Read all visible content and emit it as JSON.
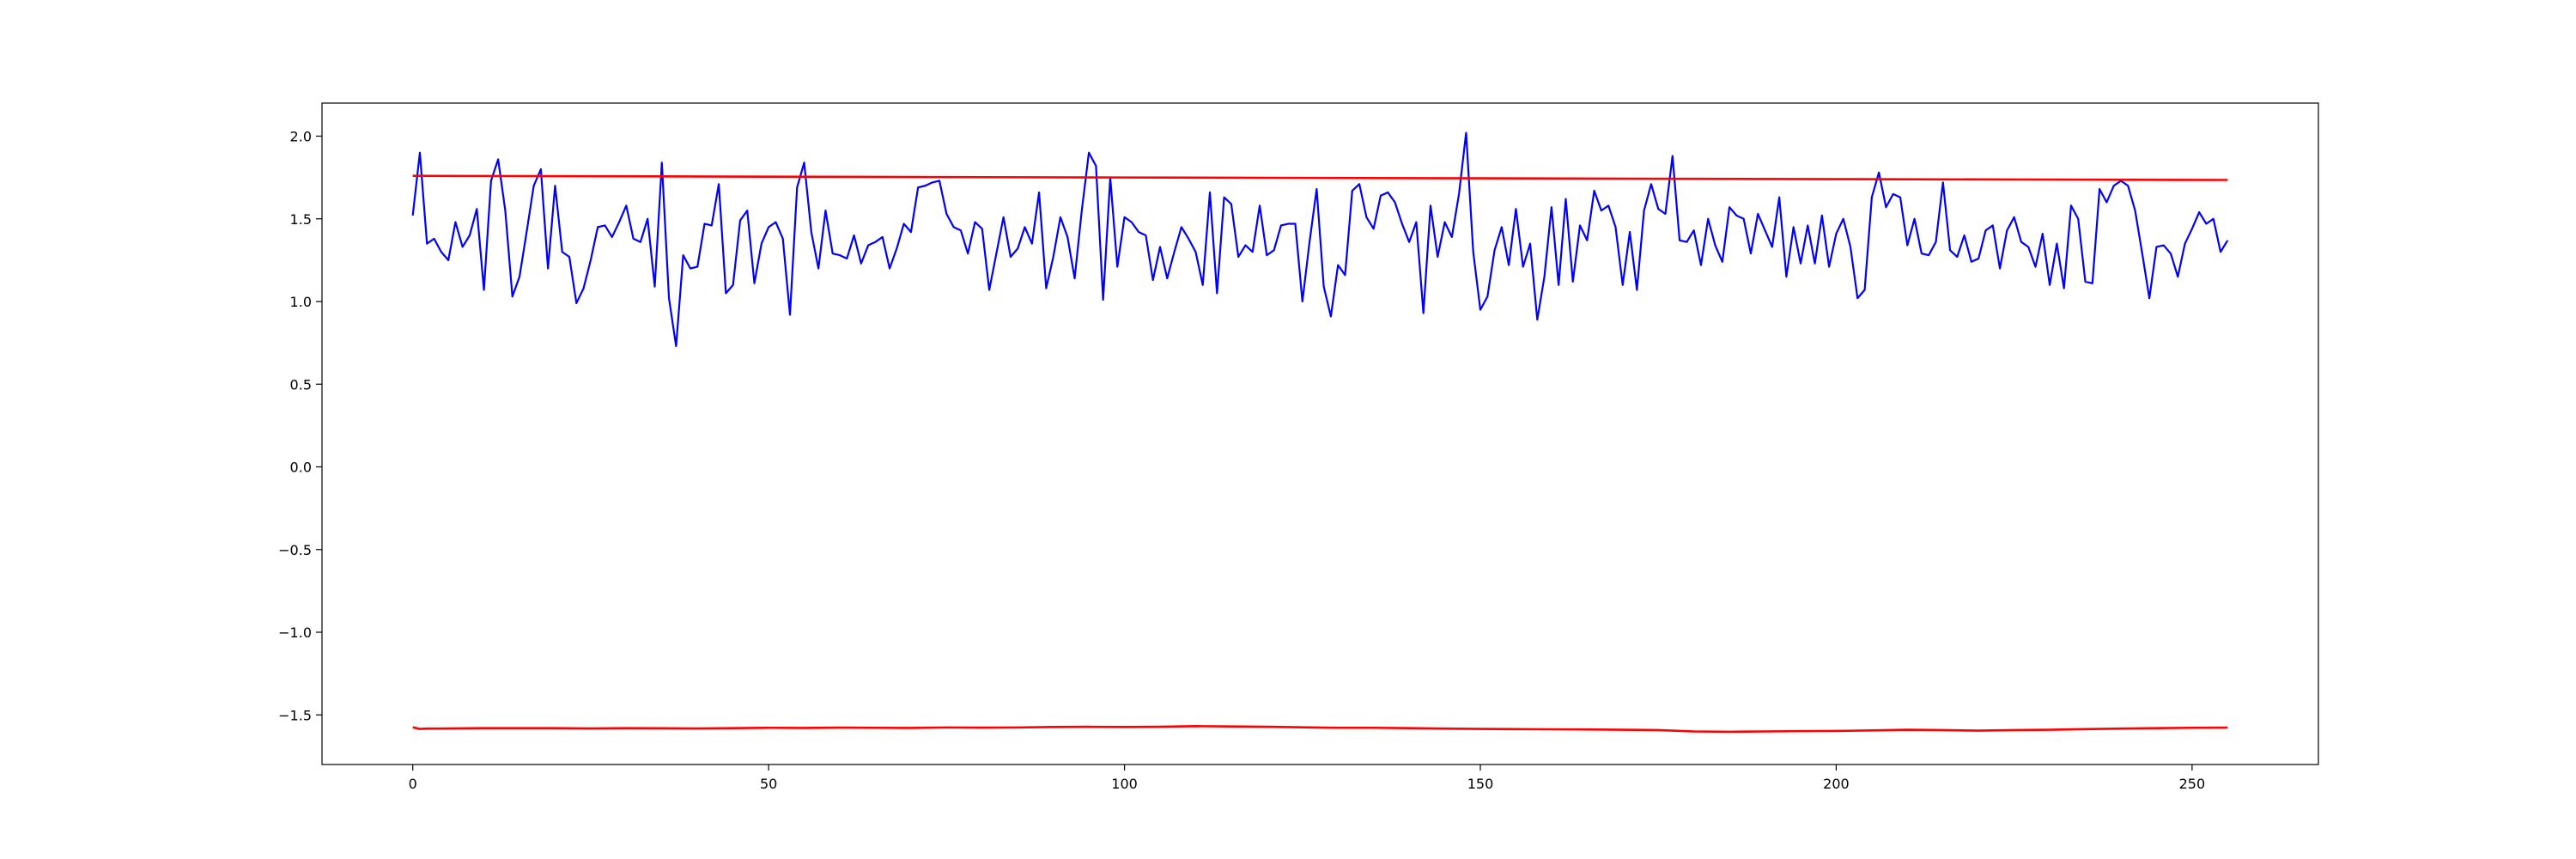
{
  "chart_data": {
    "type": "line",
    "title": "",
    "xlabel": "",
    "ylabel": "",
    "xlim": [
      -12.75,
      267.75
    ],
    "ylim": [
      -1.8,
      2.2
    ],
    "xticks": [
      0,
      50,
      100,
      150,
      200,
      250
    ],
    "xtick_labels": [
      "0",
      "50",
      "100",
      "150",
      "200",
      "250"
    ],
    "yticks": [
      -1.5,
      -1.0,
      -0.5,
      0.0,
      0.5,
      1.0,
      1.5,
      2.0
    ],
    "ytick_labels": [
      "−1.5",
      "−1.0",
      "−0.5",
      "0.0",
      "0.5",
      "1.0",
      "1.5",
      "2.0"
    ],
    "grid": false,
    "legend": "none",
    "series": [
      {
        "color": "#0000ff",
        "x_start": 0,
        "x_step": 1,
        "values": [
          1.52,
          1.9,
          1.35,
          1.38,
          1.3,
          1.25,
          1.48,
          1.33,
          1.4,
          1.56,
          1.07,
          1.73,
          1.86,
          1.55,
          1.03,
          1.15,
          1.42,
          1.7,
          1.8,
          1.2,
          1.7,
          1.3,
          1.27,
          0.99,
          1.08,
          1.25,
          1.45,
          1.46,
          1.39,
          1.48,
          1.58,
          1.38,
          1.36,
          1.5,
          1.09,
          1.84,
          1.02,
          0.73,
          1.28,
          1.2,
          1.21,
          1.47,
          1.46,
          1.71,
          1.05,
          1.1,
          1.49,
          1.55,
          1.11,
          1.35,
          1.45,
          1.48,
          1.38,
          0.92,
          1.69,
          1.84,
          1.42,
          1.2,
          1.55,
          1.29,
          1.28,
          1.26,
          1.4,
          1.23,
          1.34,
          1.36,
          1.39,
          1.2,
          1.32,
          1.47,
          1.42,
          1.69,
          1.7,
          1.72,
          1.73,
          1.53,
          1.45,
          1.43,
          1.29,
          1.48,
          1.44,
          1.07,
          1.29,
          1.51,
          1.27,
          1.32,
          1.45,
          1.35,
          1.66,
          1.08,
          1.27,
          1.51,
          1.39,
          1.14,
          1.55,
          1.9,
          1.82,
          1.01,
          1.75,
          1.21,
          1.51,
          1.48,
          1.42,
          1.4,
          1.13,
          1.33,
          1.14,
          1.3,
          1.45,
          1.38,
          1.3,
          1.1,
          1.66,
          1.05,
          1.63,
          1.59,
          1.27,
          1.34,
          1.3,
          1.58,
          1.28,
          1.31,
          1.46,
          1.47,
          1.47,
          1.0,
          1.36,
          1.68,
          1.09,
          0.91,
          1.22,
          1.16,
          1.67,
          1.71,
          1.51,
          1.44,
          1.64,
          1.66,
          1.6,
          1.47,
          1.36,
          1.48,
          0.93,
          1.58,
          1.27,
          1.48,
          1.39,
          1.65,
          2.02,
          1.3,
          0.95,
          1.03,
          1.31,
          1.45,
          1.22,
          1.56,
          1.21,
          1.35,
          0.89,
          1.15,
          1.57,
          1.1,
          1.62,
          1.12,
          1.46,
          1.37,
          1.67,
          1.55,
          1.58,
          1.45,
          1.1,
          1.42,
          1.07,
          1.55,
          1.71,
          1.56,
          1.53,
          1.88,
          1.37,
          1.36,
          1.43,
          1.22,
          1.5,
          1.34,
          1.24,
          1.57,
          1.52,
          1.5,
          1.29,
          1.53,
          1.43,
          1.33,
          1.63,
          1.15,
          1.45,
          1.23,
          1.46,
          1.23,
          1.52,
          1.21,
          1.41,
          1.5,
          1.33,
          1.02,
          1.07,
          1.63,
          1.78,
          1.57,
          1.65,
          1.63,
          1.34,
          1.5,
          1.29,
          1.28,
          1.36,
          1.72,
          1.31,
          1.27,
          1.4,
          1.24,
          1.26,
          1.43,
          1.46,
          1.2,
          1.43,
          1.51,
          1.36,
          1.33,
          1.21,
          1.41,
          1.1,
          1.35,
          1.08,
          1.58,
          1.5,
          1.12,
          1.11,
          1.68,
          1.6,
          1.7,
          1.73,
          1.7,
          1.55,
          1.29,
          1.02,
          1.33,
          1.34,
          1.29,
          1.15,
          1.35,
          1.44,
          1.54,
          1.47,
          1.5,
          1.3,
          1.37
        ]
      },
      {
        "color": "#ff0000",
        "x": [
          0,
          50,
          100,
          150,
          200,
          255
        ],
        "values": [
          1.76,
          1.755,
          1.75,
          1.745,
          1.74,
          1.735
        ]
      },
      {
        "color": "#ff0000",
        "x": [
          0,
          1,
          2,
          5,
          10,
          15,
          20,
          25,
          30,
          35,
          40,
          45,
          50,
          55,
          60,
          65,
          70,
          75,
          80,
          85,
          90,
          95,
          100,
          105,
          110,
          115,
          120,
          125,
          130,
          135,
          140,
          145,
          150,
          155,
          160,
          165,
          170,
          175,
          180,
          185,
          190,
          195,
          200,
          205,
          210,
          215,
          220,
          225,
          230,
          235,
          240,
          245,
          250,
          255
        ],
        "values": [
          -1.575,
          -1.585,
          -1.583,
          -1.582,
          -1.58,
          -1.58,
          -1.58,
          -1.582,
          -1.58,
          -1.581,
          -1.582,
          -1.58,
          -1.578,
          -1.579,
          -1.577,
          -1.578,
          -1.579,
          -1.576,
          -1.577,
          -1.576,
          -1.573,
          -1.572,
          -1.573,
          -1.572,
          -1.568,
          -1.57,
          -1.572,
          -1.575,
          -1.578,
          -1.578,
          -1.58,
          -1.583,
          -1.585,
          -1.586,
          -1.587,
          -1.588,
          -1.59,
          -1.592,
          -1.6,
          -1.602,
          -1.6,
          -1.598,
          -1.597,
          -1.594,
          -1.59,
          -1.592,
          -1.595,
          -1.592,
          -1.59,
          -1.586,
          -1.583,
          -1.58,
          -1.578,
          -1.577
        ]
      }
    ]
  }
}
